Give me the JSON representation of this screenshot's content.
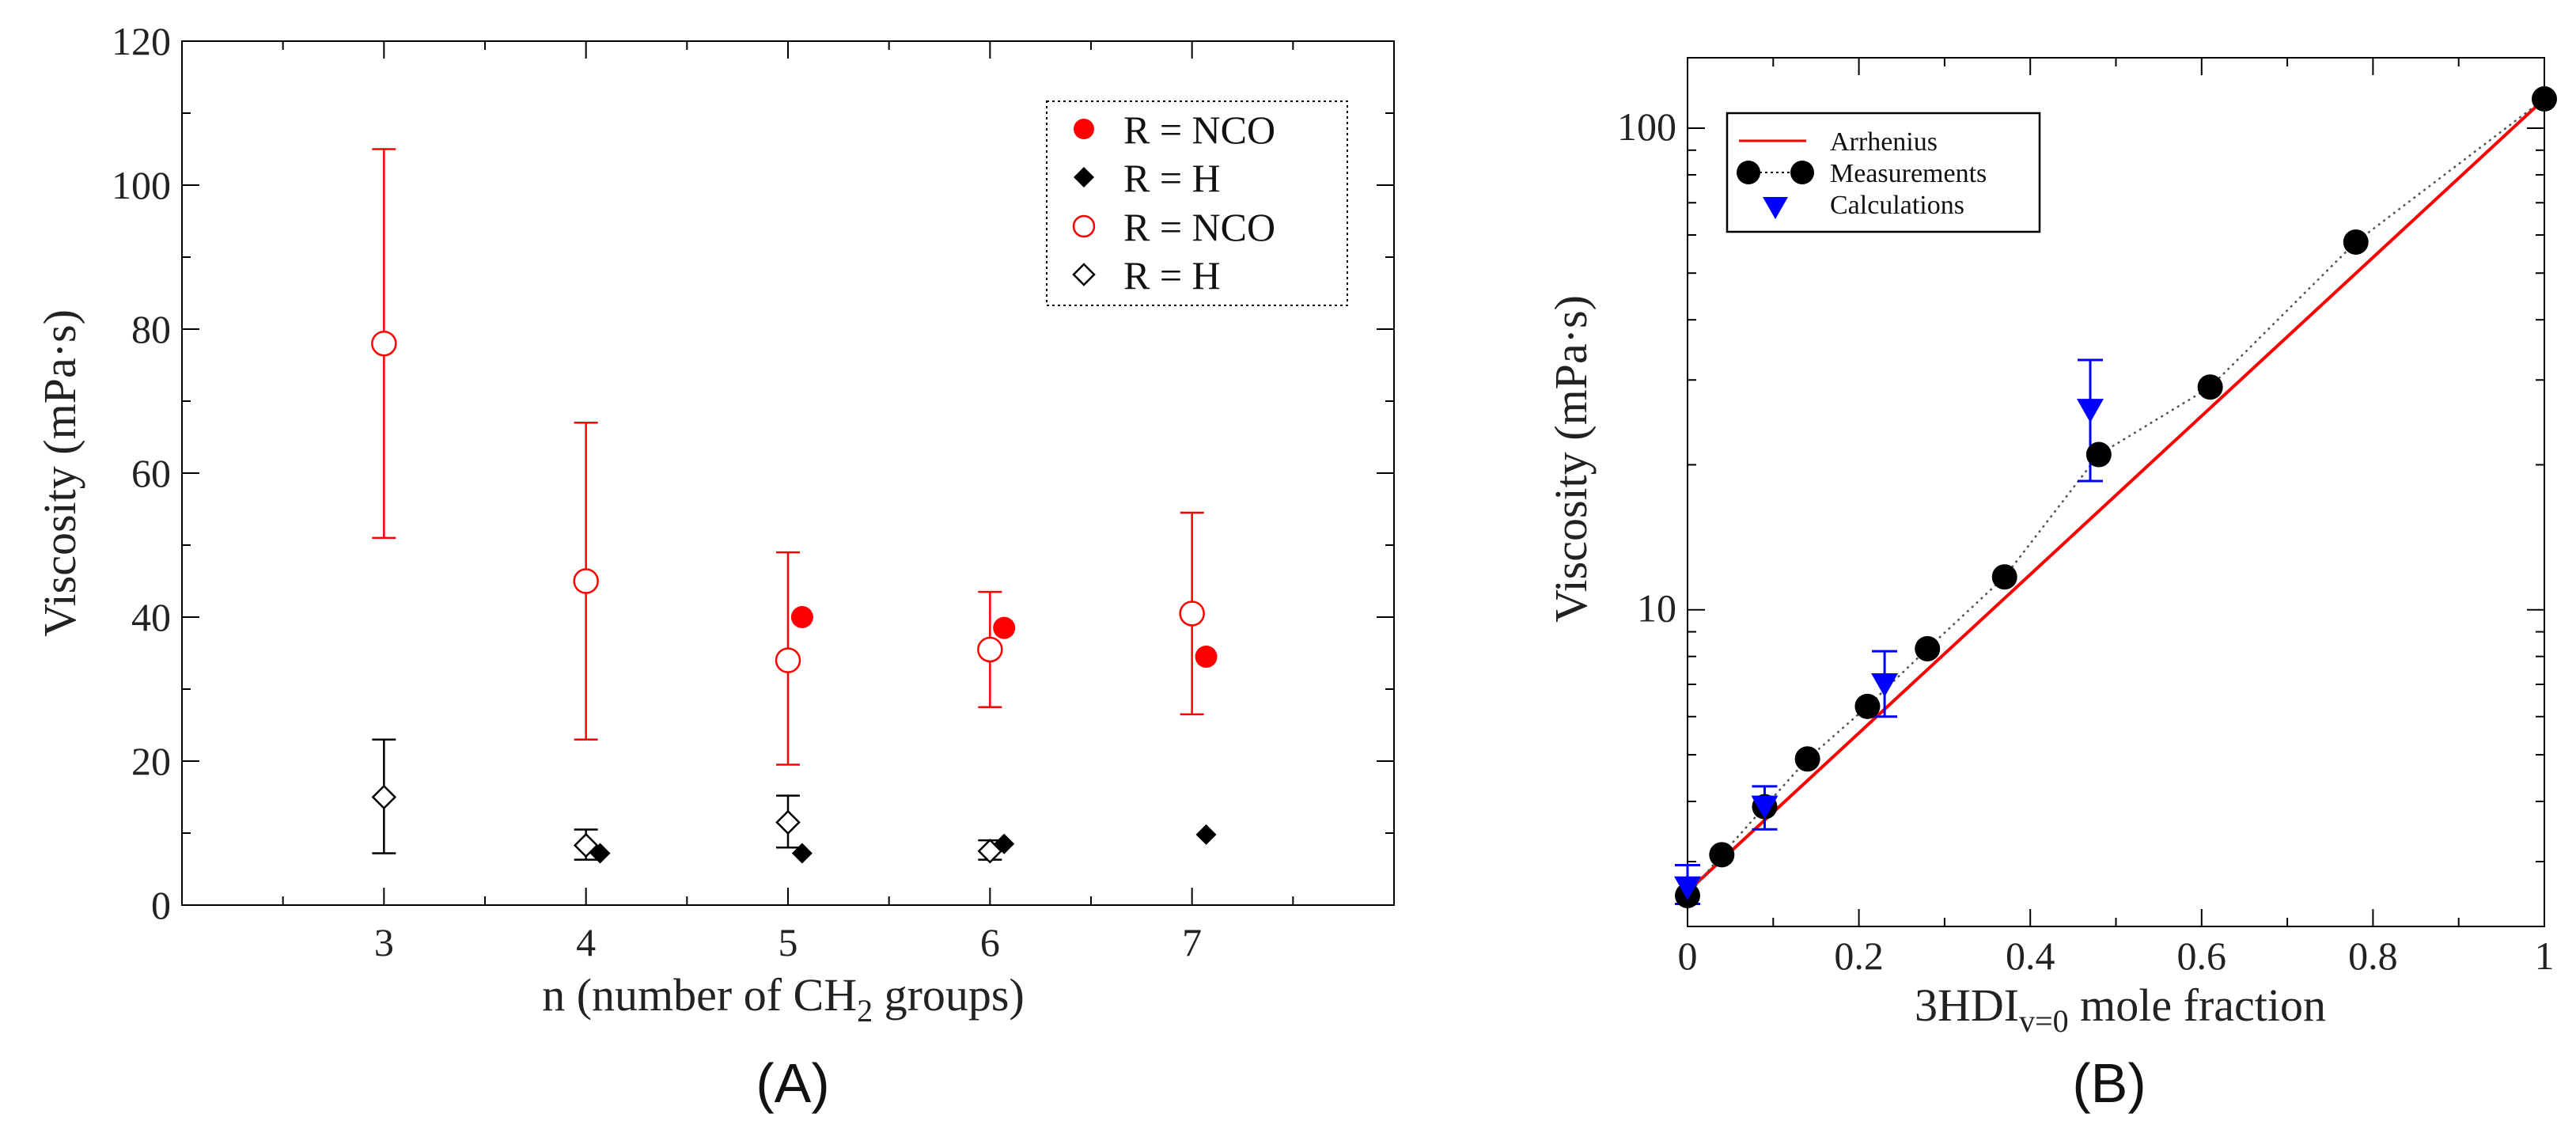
{
  "chart_data": [
    {
      "type": "scatter",
      "panel_label": "(A)",
      "xlabel_main": "n (number of CH",
      "xlabel_sub": "2",
      "xlabel_tail": " groups)",
      "ylabel": "Viscosity (mPa·s)",
      "xlim": [
        2.0,
        8.0
      ],
      "ylim": [
        0,
        120
      ],
      "xticks": [
        3,
        4,
        5,
        6,
        7
      ],
      "xtick_labels": [
        "3",
        "4",
        "5",
        "6",
        "7"
      ],
      "yticks": [
        0,
        20,
        40,
        60,
        80,
        100,
        120
      ],
      "ytick_labels": [
        "0",
        "20",
        "40",
        "60",
        "80",
        "100",
        "120"
      ],
      "legend_position": "top-right",
      "series": [
        {
          "name": "R = NCO",
          "marker": "filled-circle",
          "color": "#ff0000",
          "x": [
            5.07,
            6.07,
            7.07
          ],
          "y": [
            40,
            38.5,
            34.5
          ]
        },
        {
          "name": "R = H",
          "marker": "filled-diamond",
          "color": "#000000",
          "x": [
            4.07,
            5.07,
            6.07,
            7.07
          ],
          "y": [
            7.2,
            7.2,
            8.5,
            9.8
          ]
        },
        {
          "name": "R = NCO",
          "marker": "open-circle",
          "color": "#ff0000",
          "x": [
            3,
            4,
            5,
            6,
            7
          ],
          "y": [
            78,
            45,
            34,
            35.5,
            40.5
          ],
          "err_low": [
            51,
            23,
            19.5,
            27.5,
            26.5
          ],
          "err_high": [
            105,
            67,
            49,
            43.5,
            54.5
          ]
        },
        {
          "name": "R = H",
          "marker": "open-diamond",
          "color": "#000000",
          "x": [
            3,
            4,
            5,
            6
          ],
          "y": [
            15,
            8.3,
            11.5,
            7.5
          ],
          "err_low": [
            7.2,
            6.3,
            8,
            6.3
          ],
          "err_high": [
            23,
            10.5,
            15.2,
            9
          ]
        }
      ]
    },
    {
      "type": "line",
      "panel_label": "(B)",
      "xlabel_main": "3HDI",
      "xlabel_sub": "v=0",
      "xlabel_tail": " mole fraction",
      "ylabel": "Viscosity (mPa·s)",
      "xscale": "linear",
      "yscale": "log",
      "xlim": [
        0,
        1
      ],
      "ylim": [
        2.2,
        140
      ],
      "xticks": [
        0,
        0.2,
        0.4,
        0.6,
        0.8,
        1
      ],
      "xtick_labels": [
        "0",
        "0.2",
        "0.4",
        "0.6",
        "0.8",
        "1"
      ],
      "yticks": [
        10,
        100
      ],
      "ytick_labels": [
        "10",
        "100"
      ],
      "legend_position": "top-left",
      "series": [
        {
          "name": "Arrhenius",
          "style": "line",
          "color": "#ff0000",
          "x": [
            0,
            1
          ],
          "y": [
            2.6,
            115
          ]
        },
        {
          "name": "Measurements",
          "style": "dotted-line-filled-circle",
          "color": "#000000",
          "x": [
            0,
            0.04,
            0.09,
            0.14,
            0.21,
            0.28,
            0.37,
            0.48,
            0.61,
            0.78,
            1.0
          ],
          "y": [
            2.55,
            3.1,
            3.9,
            4.9,
            6.3,
            8.3,
            11.7,
            21,
            29,
            58,
            115
          ]
        },
        {
          "name": "Calculations",
          "style": "down-triangle",
          "color": "#0000ff",
          "x": [
            0,
            0.09,
            0.23,
            0.47
          ],
          "y": [
            2.65,
            3.9,
            7.0,
            26
          ],
          "err_low": [
            2.45,
            3.5,
            6.0,
            18.5
          ],
          "err_high": [
            2.95,
            4.3,
            8.2,
            33
          ]
        }
      ]
    }
  ]
}
